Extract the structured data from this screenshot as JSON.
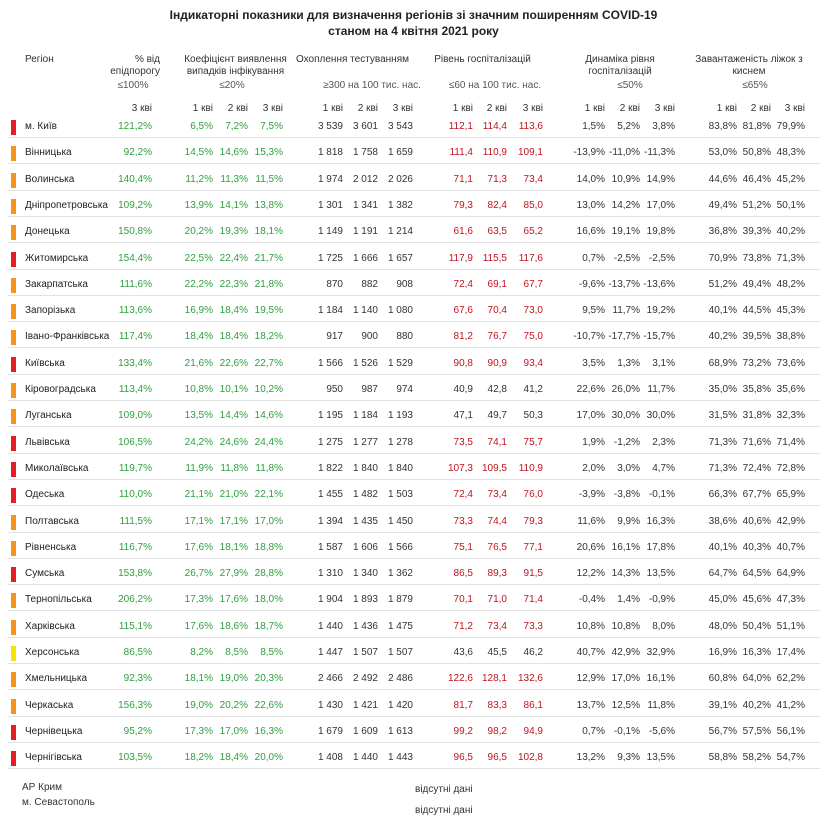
{
  "title": [
    "Індикаторні показники для визначення регіонів зі значним поширенням COVID-19",
    "станом на 4 квітня 2021 року"
  ],
  "header": {
    "region": "Регіон",
    "groups": [
      {
        "title": "% від епідпорогу",
        "threshold": "≤100%",
        "periods": [
          "3 кві"
        ],
        "color": "#2e9e3f"
      },
      {
        "title": "Коефіцієнт виявлення випадків інфікування",
        "threshold": "≤20%",
        "periods": [
          "1 кві",
          "2 кві",
          "3 кві"
        ],
        "color": "#2e9e3f"
      },
      {
        "title": "Охоплення тестуванням",
        "threshold": "≥300 на 100 тис. нас.",
        "periods": [
          "1 кві",
          "2 кві",
          "3 кві"
        ],
        "color": "#333333"
      },
      {
        "title": "Рівень госпіталізацій",
        "threshold": "≤60 на 100 тис. нас.",
        "periods": [
          "1 кві",
          "2 кві",
          "3 кві"
        ]
      },
      {
        "title": "Динаміка рівня госпіталізацій",
        "threshold": "≤50%",
        "periods": [
          "1 кві",
          "2 кві",
          "3 кві"
        ],
        "color": "#333333"
      },
      {
        "title": "Завантаженість ліжок з киснем",
        "threshold": "≤65%",
        "periods": [
          "1 кві",
          "2 кві",
          "3 кві"
        ],
        "color": "#333333"
      }
    ]
  },
  "rows": [
    {
      "region": "м. Київ",
      "marker": "#e31e24",
      "hosp_color": "#c0141e",
      "cells": [
        [
          "121,2%"
        ],
        [
          "6,5%",
          "7,2%",
          "7,5%"
        ],
        [
          "3 539",
          "3 601",
          "3 543"
        ],
        [
          "112,1",
          "114,4",
          "113,6"
        ],
        [
          "1,5%",
          "5,2%",
          "3,8%"
        ],
        [
          "83,8%",
          "81,8%",
          "79,9%"
        ]
      ]
    },
    {
      "region": "Вінницька",
      "marker": "#f7941d",
      "hosp_color": "#c0141e",
      "cells": [
        [
          "92,2%"
        ],
        [
          "14,5%",
          "14,6%",
          "15,3%"
        ],
        [
          "1 818",
          "1 758",
          "1 659"
        ],
        [
          "111,4",
          "110,9",
          "109,1"
        ],
        [
          "-13,9%",
          "-11,0%",
          "-11,3%"
        ],
        [
          "53,0%",
          "50,8%",
          "48,3%"
        ]
      ]
    },
    {
      "region": "Волинська",
      "marker": "#f7941d",
      "hosp_color": "#c0141e",
      "cells": [
        [
          "140,4%"
        ],
        [
          "11,2%",
          "11,3%",
          "11,5%"
        ],
        [
          "1 974",
          "2 012",
          "2 026"
        ],
        [
          "71,1",
          "71,3",
          "73,4"
        ],
        [
          "14,0%",
          "10,9%",
          "14,9%"
        ],
        [
          "44,6%",
          "46,4%",
          "45,2%"
        ]
      ]
    },
    {
      "region": "Дніпропетровська",
      "marker": "#f7941d",
      "hosp_color": "#c0141e",
      "cells": [
        [
          "109,2%"
        ],
        [
          "13,9%",
          "14,1%",
          "13,8%"
        ],
        [
          "1 301",
          "1 341",
          "1 382"
        ],
        [
          "79,3",
          "82,4",
          "85,0"
        ],
        [
          "13,0%",
          "14,2%",
          "17,0%"
        ],
        [
          "49,4%",
          "51,2%",
          "50,1%"
        ]
      ]
    },
    {
      "region": "Донецька",
      "marker": "#f7941d",
      "hosp_color": "#c0141e",
      "cells": [
        [
          "150,8%"
        ],
        [
          "20,2%",
          "19,3%",
          "18,1%"
        ],
        [
          "1 149",
          "1 191",
          "1 214"
        ],
        [
          "61,6",
          "63,5",
          "65,2"
        ],
        [
          "16,6%",
          "19,1%",
          "19,8%"
        ],
        [
          "36,8%",
          "39,3%",
          "40,2%"
        ]
      ]
    },
    {
      "region": "Житомирська",
      "marker": "#e31e24",
      "hosp_color": "#c0141e",
      "cells": [
        [
          "154,4%"
        ],
        [
          "22,5%",
          "22,4%",
          "21,7%"
        ],
        [
          "1 725",
          "1 666",
          "1 657"
        ],
        [
          "117,9",
          "115,5",
          "117,6"
        ],
        [
          "0,7%",
          "-2,5%",
          "-2,5%"
        ],
        [
          "70,9%",
          "73,8%",
          "71,3%"
        ]
      ]
    },
    {
      "region": "Закарпатська",
      "marker": "#f7941d",
      "hosp_color": "#c0141e",
      "cells": [
        [
          "111,6%"
        ],
        [
          "22,2%",
          "22,3%",
          "21,8%"
        ],
        [
          "870",
          "882",
          "908"
        ],
        [
          "72,4",
          "69,1",
          "67,7"
        ],
        [
          "-9,6%",
          "-13,7%",
          "-13,6%"
        ],
        [
          "51,2%",
          "49,4%",
          "48,2%"
        ]
      ]
    },
    {
      "region": "Запорізька",
      "marker": "#f7941d",
      "hosp_color": "#c0141e",
      "cells": [
        [
          "113,6%"
        ],
        [
          "16,9%",
          "18,4%",
          "19,5%"
        ],
        [
          "1 184",
          "1 140",
          "1 080"
        ],
        [
          "67,6",
          "70,4",
          "73,0"
        ],
        [
          "9,5%",
          "11,7%",
          "19,2%"
        ],
        [
          "40,1%",
          "44,5%",
          "45,3%"
        ]
      ]
    },
    {
      "region": "Івано-Франківська",
      "marker": "#f7941d",
      "hosp_color": "#c0141e",
      "cells": [
        [
          "117,4%"
        ],
        [
          "18,4%",
          "18,4%",
          "18,2%"
        ],
        [
          "917",
          "900",
          "880"
        ],
        [
          "81,2",
          "76,7",
          "75,0"
        ],
        [
          "-10,7%",
          "-17,7%",
          "-15,7%"
        ],
        [
          "40,2%",
          "39,5%",
          "38,8%"
        ]
      ]
    },
    {
      "region": "Київська",
      "marker": "#e31e24",
      "hosp_color": "#c0141e",
      "cells": [
        [
          "133,4%"
        ],
        [
          "21,6%",
          "22,6%",
          "22,7%"
        ],
        [
          "1 566",
          "1 526",
          "1 529"
        ],
        [
          "90,8",
          "90,9",
          "93,4"
        ],
        [
          "3,5%",
          "1,3%",
          "3,1%"
        ],
        [
          "68,9%",
          "73,2%",
          "73,6%"
        ]
      ]
    },
    {
      "region": "Кіровоградська",
      "marker": "#f7941d",
      "hosp_color": "#333333",
      "cells": [
        [
          "113,4%"
        ],
        [
          "10,8%",
          "10,1%",
          "10,2%"
        ],
        [
          "950",
          "987",
          "974"
        ],
        [
          "40,9",
          "42,8",
          "41,2"
        ],
        [
          "22,6%",
          "26,0%",
          "11,7%"
        ],
        [
          "35,0%",
          "35,8%",
          "35,6%"
        ]
      ]
    },
    {
      "region": "Луганська",
      "marker": "#f7941d",
      "hosp_color": "#333333",
      "cells": [
        [
          "109,0%"
        ],
        [
          "13,5%",
          "14,4%",
          "14,6%"
        ],
        [
          "1 195",
          "1 184",
          "1 193"
        ],
        [
          "47,1",
          "49,7",
          "50,3"
        ],
        [
          "17,0%",
          "30,0%",
          "30,0%"
        ],
        [
          "31,5%",
          "31,8%",
          "32,3%"
        ]
      ]
    },
    {
      "region": "Львівська",
      "marker": "#e31e24",
      "hosp_color": "#c0141e",
      "cells": [
        [
          "106,5%"
        ],
        [
          "24,2%",
          "24,6%",
          "24,4%"
        ],
        [
          "1 275",
          "1 277",
          "1 278"
        ],
        [
          "73,5",
          "74,1",
          "75,7"
        ],
        [
          "1,9%",
          "-1,2%",
          "2,3%"
        ],
        [
          "71,3%",
          "71,6%",
          "71,4%"
        ]
      ]
    },
    {
      "region": "Миколаївська",
      "marker": "#e31e24",
      "hosp_color": "#c0141e",
      "cells": [
        [
          "119,7%"
        ],
        [
          "11,9%",
          "11,8%",
          "11,8%"
        ],
        [
          "1 822",
          "1 840",
          "1 840"
        ],
        [
          "107,3",
          "109,5",
          "110,9"
        ],
        [
          "2,0%",
          "3,0%",
          "4,7%"
        ],
        [
          "71,3%",
          "72,4%",
          "72,8%"
        ]
      ]
    },
    {
      "region": "Одеська",
      "marker": "#e31e24",
      "hosp_color": "#c0141e",
      "cells": [
        [
          "110,0%"
        ],
        [
          "21,1%",
          "21,0%",
          "22,1%"
        ],
        [
          "1 455",
          "1 482",
          "1 503"
        ],
        [
          "72,4",
          "73,4",
          "76,0"
        ],
        [
          "-3,9%",
          "-3,8%",
          "-0,1%"
        ],
        [
          "66,3%",
          "67,7%",
          "65,9%"
        ]
      ]
    },
    {
      "region": "Полтавська",
      "marker": "#f7941d",
      "hosp_color": "#c0141e",
      "cells": [
        [
          "111,5%"
        ],
        [
          "17,1%",
          "17,1%",
          "17,0%"
        ],
        [
          "1 394",
          "1 435",
          "1 450"
        ],
        [
          "73,3",
          "74,4",
          "79,3"
        ],
        [
          "11,6%",
          "9,9%",
          "16,3%"
        ],
        [
          "38,6%",
          "40,6%",
          "42,9%"
        ]
      ]
    },
    {
      "region": "Рівненська",
      "marker": "#f7941d",
      "hosp_color": "#c0141e",
      "cells": [
        [
          "116,7%"
        ],
        [
          "17,6%",
          "18,1%",
          "18,8%"
        ],
        [
          "1 587",
          "1 606",
          "1 566"
        ],
        [
          "75,1",
          "76,5",
          "77,1"
        ],
        [
          "20,6%",
          "16,1%",
          "17,8%"
        ],
        [
          "40,1%",
          "40,3%",
          "40,7%"
        ]
      ]
    },
    {
      "region": "Сумська",
      "marker": "#e31e24",
      "hosp_color": "#c0141e",
      "cells": [
        [
          "153,8%"
        ],
        [
          "26,7%",
          "27,9%",
          "28,8%"
        ],
        [
          "1 310",
          "1 340",
          "1 362"
        ],
        [
          "86,5",
          "89,3",
          "91,5"
        ],
        [
          "12,2%",
          "14,3%",
          "13,5%"
        ],
        [
          "64,7%",
          "64,5%",
          "64,9%"
        ]
      ]
    },
    {
      "region": "Тернопільська",
      "marker": "#f7941d",
      "hosp_color": "#c0141e",
      "cells": [
        [
          "206,2%"
        ],
        [
          "17,3%",
          "17,6%",
          "18,0%"
        ],
        [
          "1 904",
          "1 893",
          "1 879"
        ],
        [
          "70,1",
          "71,0",
          "71,4"
        ],
        [
          "-0,4%",
          "1,4%",
          "-0,9%"
        ],
        [
          "45,0%",
          "45,6%",
          "47,3%"
        ]
      ]
    },
    {
      "region": "Харківська",
      "marker": "#f7941d",
      "hosp_color": "#c0141e",
      "cells": [
        [
          "115,1%"
        ],
        [
          "17,6%",
          "18,6%",
          "18,7%"
        ],
        [
          "1 440",
          "1 436",
          "1 475"
        ],
        [
          "71,2",
          "73,4",
          "73,3"
        ],
        [
          "10,8%",
          "10,8%",
          "8,0%"
        ],
        [
          "48,0%",
          "50,4%",
          "51,1%"
        ]
      ]
    },
    {
      "region": "Херсонська",
      "marker": "#f5e400",
      "hosp_color": "#333333",
      "cells": [
        [
          "86,5%"
        ],
        [
          "8,2%",
          "8,5%",
          "8,5%"
        ],
        [
          "1 447",
          "1 507",
          "1 507"
        ],
        [
          "43,6",
          "45,5",
          "46,2"
        ],
        [
          "40,7%",
          "42,9%",
          "32,9%"
        ],
        [
          "16,9%",
          "16,3%",
          "17,4%"
        ]
      ]
    },
    {
      "region": "Хмельницька",
      "marker": "#f7941d",
      "hosp_color": "#c0141e",
      "cells": [
        [
          "92,3%"
        ],
        [
          "18,1%",
          "19,0%",
          "20,3%"
        ],
        [
          "2 466",
          "2 492",
          "2 486"
        ],
        [
          "122,6",
          "128,1",
          "132,6"
        ],
        [
          "12,9%",
          "17,0%",
          "16,1%"
        ],
        [
          "60,8%",
          "64,0%",
          "62,2%"
        ]
      ]
    },
    {
      "region": "Черкаська",
      "marker": "#f7941d",
      "hosp_color": "#c0141e",
      "cells": [
        [
          "156,3%"
        ],
        [
          "19,0%",
          "20,2%",
          "22,6%"
        ],
        [
          "1 430",
          "1 421",
          "1 420"
        ],
        [
          "81,7",
          "83,3",
          "86,1"
        ],
        [
          "13,7%",
          "12,5%",
          "11,8%"
        ],
        [
          "39,1%",
          "40,2%",
          "41,2%"
        ]
      ]
    },
    {
      "region": "Чернівецька",
      "marker": "#e31e24",
      "hosp_color": "#c0141e",
      "cells": [
        [
          "95,2%"
        ],
        [
          "17,3%",
          "17,0%",
          "16,3%"
        ],
        [
          "1 679",
          "1 609",
          "1 613"
        ],
        [
          "99,2",
          "98,2",
          "94,9"
        ],
        [
          "0,7%",
          "-0,1%",
          "-5,6%"
        ],
        [
          "56,7%",
          "57,5%",
          "56,1%"
        ]
      ]
    },
    {
      "region": "Чернігівська",
      "marker": "#e31e24",
      "hosp_color": "#c0141e",
      "cells": [
        [
          "103,5%"
        ],
        [
          "18,2%",
          "18,4%",
          "20,0%"
        ],
        [
          "1 408",
          "1 440",
          "1 443"
        ],
        [
          "96,5",
          "96,5",
          "102,8"
        ],
        [
          "13,2%",
          "9,3%",
          "13,5%"
        ],
        [
          "58,8%",
          "58,2%",
          "54,7%"
        ]
      ]
    }
  ],
  "footer": [
    {
      "region": "АР Крим",
      "note": "відсутні дані"
    },
    {
      "region": "м. Севастополь",
      "note": "відсутні дані"
    }
  ]
}
